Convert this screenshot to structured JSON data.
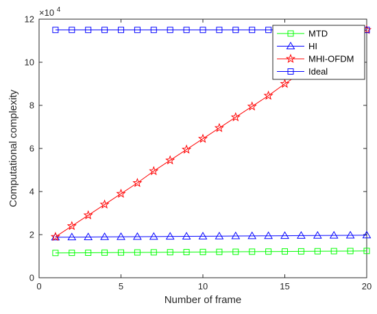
{
  "chart_data": {
    "type": "line",
    "xlabel": "Number of frame",
    "ylabel": "Computational complexity",
    "y_exponent_base": "×10",
    "y_exponent_power": "4",
    "xlim": [
      0,
      20
    ],
    "ylim": [
      0,
      12
    ],
    "xticks": [
      0,
      5,
      10,
      15,
      20
    ],
    "yticks": [
      0,
      2,
      4,
      6,
      8,
      10,
      12
    ],
    "grid": false,
    "legend_position": "top-right",
    "x": [
      1,
      2,
      3,
      4,
      5,
      6,
      7,
      8,
      9,
      10,
      11,
      12,
      13,
      14,
      15,
      16,
      17,
      18,
      19,
      20
    ],
    "series": [
      {
        "name": "MTD",
        "color": "#00ff00",
        "marker": "square",
        "values": [
          1.15,
          1.155,
          1.16,
          1.165,
          1.17,
          1.175,
          1.18,
          1.185,
          1.19,
          1.195,
          1.2,
          1.205,
          1.21,
          1.215,
          1.22,
          1.225,
          1.23,
          1.235,
          1.24,
          1.245
        ]
      },
      {
        "name": "HI",
        "color": "#0000ff",
        "marker": "triangle",
        "values": [
          1.88,
          1.885,
          1.89,
          1.895,
          1.9,
          1.905,
          1.91,
          1.915,
          1.92,
          1.925,
          1.93,
          1.935,
          1.94,
          1.945,
          1.95,
          1.955,
          1.96,
          1.965,
          1.97,
          1.975
        ]
      },
      {
        "name": "MHI-OFDM",
        "color": "#ff0000",
        "marker": "star",
        "values": [
          1.9,
          2.4,
          2.9,
          3.4,
          3.9,
          4.4,
          4.95,
          5.45,
          5.95,
          6.45,
          6.95,
          7.45,
          7.95,
          8.45,
          9.0,
          9.5,
          10.0,
          10.5,
          11.0,
          11.5
        ]
      },
      {
        "name": "Ideal",
        "color": "#0000ff",
        "marker": "square",
        "values": [
          11.5,
          11.5,
          11.5,
          11.5,
          11.5,
          11.5,
          11.5,
          11.5,
          11.5,
          11.5,
          11.5,
          11.5,
          11.5,
          11.5,
          11.5,
          11.5,
          11.5,
          11.5,
          11.5,
          11.5
        ]
      }
    ]
  }
}
